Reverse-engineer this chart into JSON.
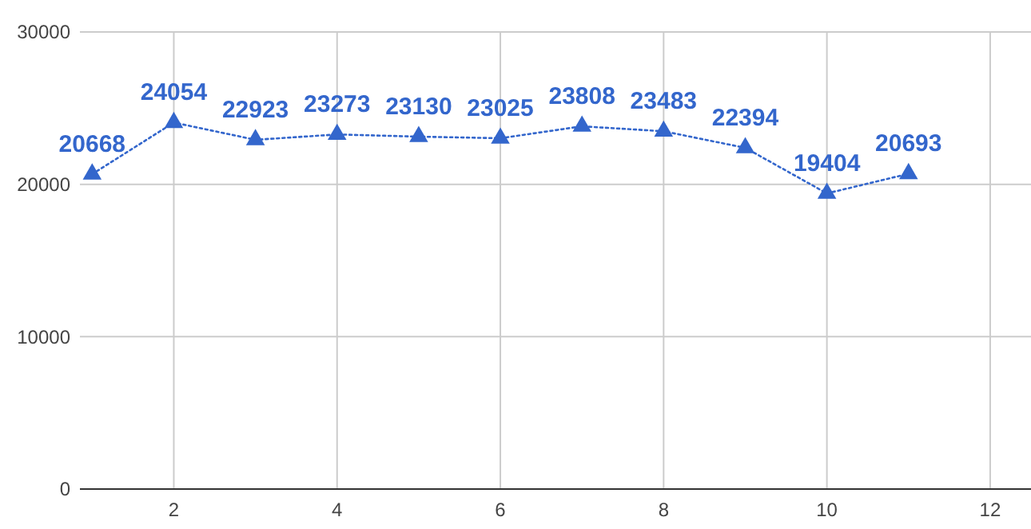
{
  "chart_data": {
    "type": "line",
    "x": [
      1,
      2,
      3,
      4,
      5,
      6,
      7,
      8,
      9,
      10,
      11
    ],
    "series": [
      {
        "color": "#3366cc",
        "values": [
          20668,
          24054,
          22923,
          23273,
          23130,
          23025,
          23808,
          23483,
          22394,
          19404,
          20693
        ]
      }
    ],
    "xlim": [
      0.85,
      12.5
    ],
    "xticks": [
      2,
      4,
      6,
      8,
      10,
      12
    ],
    "ylim": [
      0,
      30000
    ],
    "yticks": [
      0,
      10000,
      20000,
      30000
    ],
    "grid": true,
    "marker": "triangle",
    "line_style": "dotted",
    "data_labels": true
  }
}
